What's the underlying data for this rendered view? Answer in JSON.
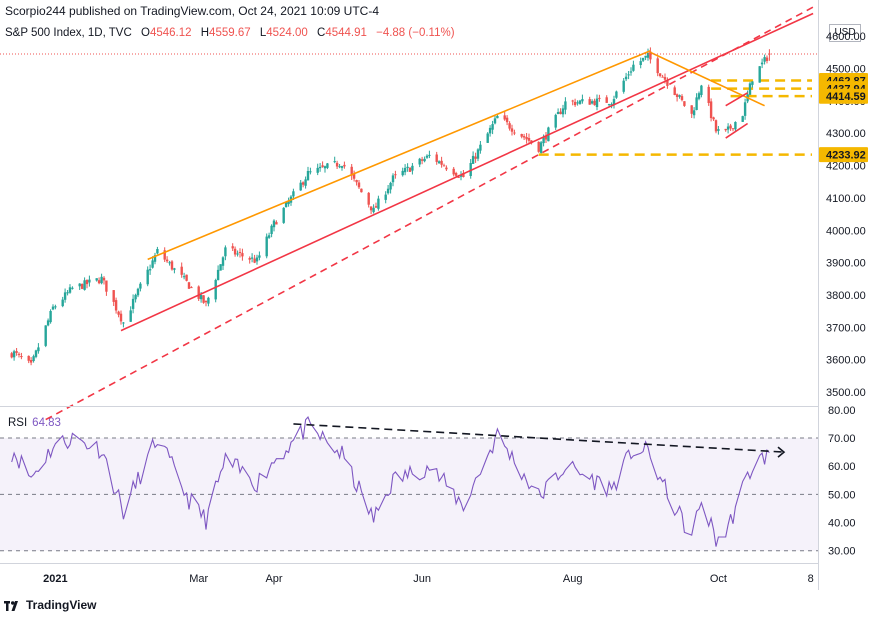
{
  "header": {
    "published": "Scorpio244 published on TradingView.com, Oct 24, 2021 10:09 UTC-4"
  },
  "legend": {
    "symbol": "S&P 500 Index, 1D, TVC",
    "open_label": "O",
    "open": "4546.12",
    "high_label": "H",
    "high": "4559.67",
    "low_label": "L",
    "low": "4524.00",
    "close_label": "C",
    "close": "4544.91",
    "change": "−4.88 (−0.11%)"
  },
  "currency": "USD",
  "footer": {
    "brand": "TradingView"
  },
  "colors": {
    "up": "#26a69a",
    "down": "#ef5350",
    "rsi": "#7e57c2",
    "channel_upper": "#ff9800",
    "trend_red": "#f23645",
    "support": "#f5b800"
  },
  "chart_data": [
    {
      "type": "candlestick",
      "title": "S&P 500 Index, 1D, TVC",
      "yaxis_ticks": [
        "4600.00",
        "4500.00",
        "4400.00",
        "4300.00",
        "4200.00",
        "4100.00",
        "4000.00",
        "3900.00",
        "3800.00",
        "3700.00",
        "3600.00",
        "3500.00"
      ],
      "xaxis_ticks": [
        "2021",
        "Mar",
        "Apr",
        "Jun",
        "Aug",
        "Oct",
        "8"
      ],
      "price_labels": [
        {
          "label": "4462.87",
          "value": 4462.87
        },
        {
          "label": "4437.94",
          "value": 4437.94
        },
        {
          "label": "4414.59",
          "value": 4414.59
        },
        {
          "label": "4233.92",
          "value": 4233.92
        }
      ],
      "ylim": [
        3460,
        4650
      ],
      "grid": false,
      "close_anchors": [
        [
          "2020-12-15",
          3620
        ],
        [
          "2020-12-22",
          3580
        ],
        [
          "2020-12-31",
          3760
        ],
        [
          "2021-01-08",
          3820
        ],
        [
          "2021-01-20",
          3850
        ],
        [
          "2021-01-29",
          3715
        ],
        [
          "2021-02-12",
          3935
        ],
        [
          "2021-02-25",
          3830
        ],
        [
          "2021-03-04",
          3770
        ],
        [
          "2021-03-12",
          3940
        ],
        [
          "2021-03-25",
          3905
        ],
        [
          "2021-04-01",
          4020
        ],
        [
          "2021-04-15",
          4175
        ],
        [
          "2021-04-29",
          4210
        ],
        [
          "2021-05-12",
          4060
        ],
        [
          "2021-05-20",
          4160
        ],
        [
          "2021-06-04",
          4230
        ],
        [
          "2021-06-18",
          4165
        ],
        [
          "2021-07-02",
          4350
        ],
        [
          "2021-07-19",
          4255
        ],
        [
          "2021-07-30",
          4395
        ],
        [
          "2021-08-18",
          4400
        ],
        [
          "2021-08-27",
          4510
        ],
        [
          "2021-09-02",
          4537
        ],
        [
          "2021-09-10",
          4458
        ],
        [
          "2021-09-20",
          4357
        ],
        [
          "2021-09-24",
          4455
        ],
        [
          "2021-09-30",
          4307
        ],
        [
          "2021-10-04",
          4300
        ],
        [
          "2021-10-11",
          4361
        ],
        [
          "2021-10-15",
          4471
        ],
        [
          "2021-10-22",
          4545
        ]
      ],
      "last_candle": {
        "open": 4546.12,
        "high": 4559.67,
        "low": 4524.0,
        "close": 4544.91
      },
      "trendlines": [
        {
          "name": "upper-channel",
          "color": "orange",
          "style": "solid",
          "points": [
            [
              "2021-02-08",
              3910
            ],
            [
              "2021-09-03",
              4555
            ]
          ]
        },
        {
          "name": "lower-channel",
          "color": "red",
          "style": "solid",
          "points": [
            [
              "2021-01-28",
              3690
            ],
            [
              "2021-11-09",
              4670
            ]
          ]
        },
        {
          "name": "lower-channel-extension",
          "color": "red",
          "style": "dashed",
          "points": [
            [
              "2020-12-28",
              3415
            ],
            [
              "2021-11-09",
              4690
            ]
          ]
        },
        {
          "name": "downtrend",
          "color": "orange",
          "style": "solid",
          "points": [
            [
              "2021-09-03",
              4550
            ],
            [
              "2021-10-20",
              4385
            ]
          ]
        },
        {
          "name": "wedge-top",
          "color": "red",
          "style": "solid",
          "points": [
            [
              "2021-10-04",
              4385
            ],
            [
              "2021-10-13",
              4425
            ]
          ]
        },
        {
          "name": "wedge-bottom",
          "color": "red",
          "style": "solid",
          "points": [
            [
              "2021-10-04",
              4285
            ],
            [
              "2021-10-13",
              4330
            ]
          ]
        }
      ]
    },
    {
      "type": "line",
      "title": "RSI",
      "last_value": "64.83",
      "yaxis_ticks": [
        "80.00",
        "70.00",
        "60.00",
        "50.00",
        "40.00",
        "30.00"
      ],
      "ylim": [
        26,
        81
      ],
      "bands": [
        70,
        50,
        30
      ],
      "anchors": [
        [
          "2020-12-15",
          65
        ],
        [
          "2020-12-22",
          56
        ],
        [
          "2020-12-31",
          67
        ],
        [
          "2021-01-08",
          70
        ],
        [
          "2021-01-20",
          66
        ],
        [
          "2021-01-29",
          44
        ],
        [
          "2021-02-12",
          70
        ],
        [
          "2021-02-25",
          48
        ],
        [
          "2021-03-04",
          41
        ],
        [
          "2021-03-12",
          62
        ],
        [
          "2021-03-25",
          54
        ],
        [
          "2021-04-01",
          62
        ],
        [
          "2021-04-15",
          74
        ],
        [
          "2021-04-29",
          64
        ],
        [
          "2021-05-12",
          41
        ],
        [
          "2021-05-20",
          55
        ],
        [
          "2021-06-04",
          60
        ],
        [
          "2021-06-18",
          46
        ],
        [
          "2021-07-02",
          71
        ],
        [
          "2021-07-19",
          49
        ],
        [
          "2021-07-30",
          60
        ],
        [
          "2021-08-18",
          52
        ],
        [
          "2021-08-27",
          66
        ],
        [
          "2021-09-02",
          65
        ],
        [
          "2021-09-10",
          50
        ],
        [
          "2021-09-20",
          35
        ],
        [
          "2021-09-24",
          48
        ],
        [
          "2021-09-30",
          34
        ],
        [
          "2021-10-04",
          36
        ],
        [
          "2021-10-11",
          52
        ],
        [
          "2021-10-15",
          60
        ],
        [
          "2021-10-22",
          64.83
        ]
      ],
      "divergence_line": {
        "color": "black",
        "style": "dashed",
        "points": [
          [
            "2021-04-09",
            75
          ],
          [
            "2021-10-28",
            65
          ]
        ]
      }
    }
  ]
}
